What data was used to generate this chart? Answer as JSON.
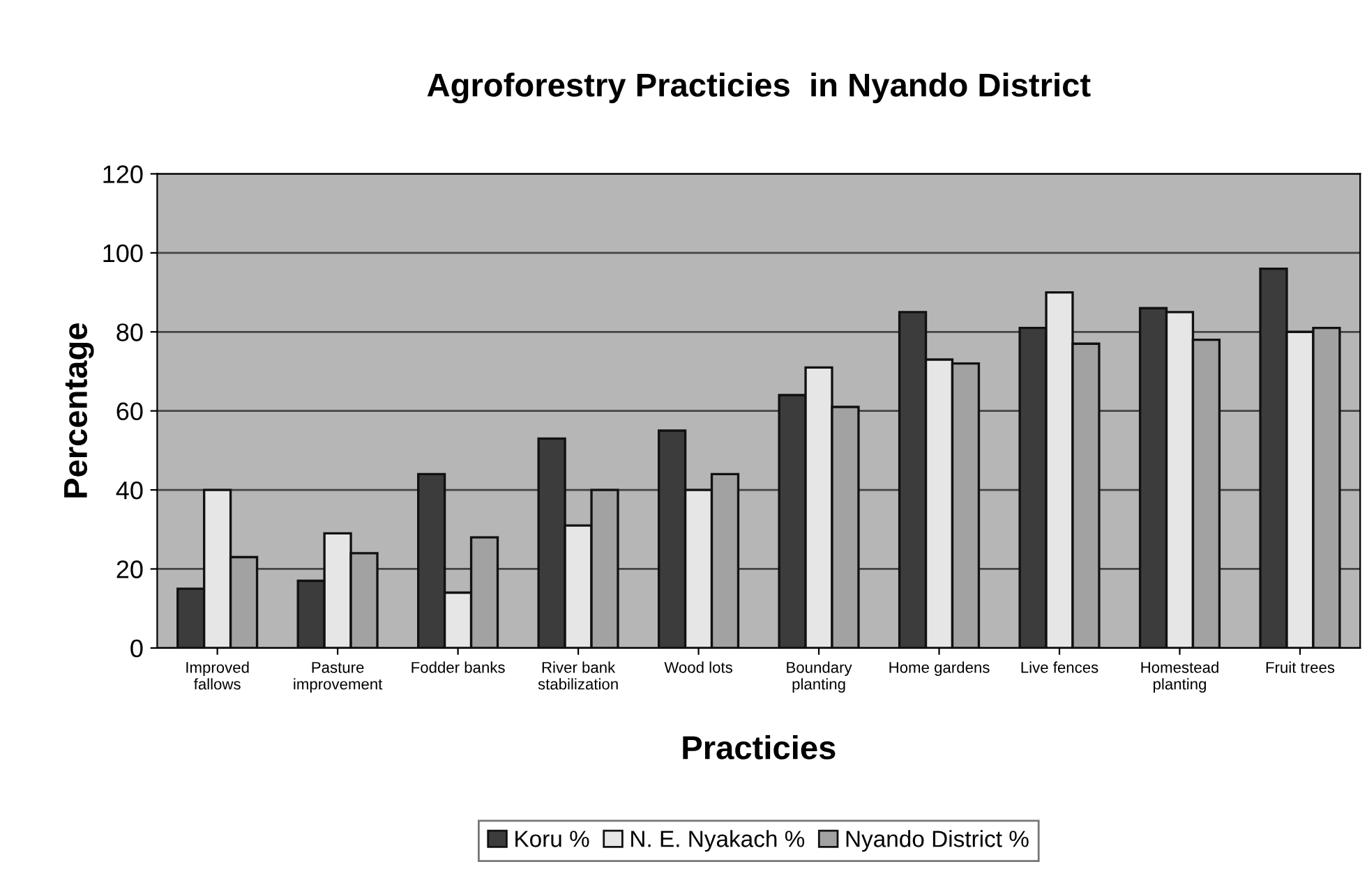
{
  "chart_data": {
    "type": "bar",
    "title": "Agroforestry Practicies  in Nyando District",
    "xlabel": "Practicies",
    "ylabel": "Percentage",
    "categories": [
      "Improved\nfallows",
      "Pasture\nimprovement",
      "Fodder banks",
      "River bank\nstabilization",
      "Wood lots",
      "Boundary\nplanting",
      "Home gardens",
      "Live fences",
      "Homestead\nplanting",
      "Fruit trees"
    ],
    "series": [
      {
        "name": "Koru %",
        "color": "#3c3c3c",
        "values": [
          15,
          17,
          44,
          53,
          55,
          64,
          85,
          81,
          86,
          96
        ]
      },
      {
        "name": "N. E. Nyakach %",
        "color": "#e6e6e6",
        "values": [
          40,
          29,
          14,
          31,
          40,
          71,
          73,
          90,
          85,
          80
        ]
      },
      {
        "name": "Nyando District %",
        "color": "#a2a2a2",
        "values": [
          23,
          24,
          28,
          40,
          44,
          61,
          72,
          77,
          78,
          81
        ]
      }
    ],
    "ylim": [
      0,
      120
    ],
    "yticks": [
      0,
      20,
      40,
      60,
      80,
      100,
      120
    ],
    "grid": "y",
    "legend": "bottom"
  }
}
